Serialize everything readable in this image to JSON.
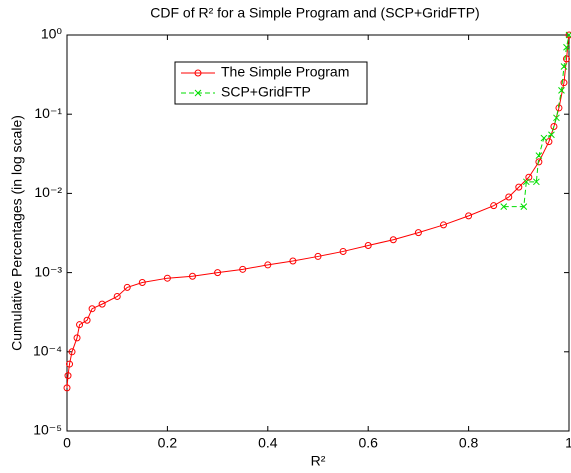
{
  "chart_data": {
    "type": "line",
    "title": "CDF of R² for a Simple Program and (SCP+GridFTP)",
    "x_label": "R²",
    "y_label": "Cumulative Percentages (in log scale)",
    "xlim": [
      0,
      1
    ],
    "xticks": [
      0,
      0.2,
      0.4,
      0.6,
      0.8,
      1
    ],
    "ylim": [
      1e-05,
      1
    ],
    "y_scale": "log",
    "yticks": [
      {
        "value": 1e-05,
        "label": "10⁻⁵"
      },
      {
        "value": 0.0001,
        "label": "10⁻⁴"
      },
      {
        "value": 0.001,
        "label": "10⁻³"
      },
      {
        "value": 0.01,
        "label": "10⁻²"
      },
      {
        "value": 0.1,
        "label": "10⁻¹"
      },
      {
        "value": 1,
        "label": "10⁰"
      }
    ],
    "grid": false,
    "legend": "upper center",
    "series": [
      {
        "name": "The Simple Program",
        "color": "#ff0000",
        "marker": "o",
        "linestyle": "solid",
        "x": [
          0,
          0.002,
          0.005,
          0.01,
          0.02,
          0.025,
          0.04,
          0.05,
          0.07,
          0.1,
          0.12,
          0.15,
          0.2,
          0.25,
          0.3,
          0.35,
          0.4,
          0.45,
          0.5,
          0.55,
          0.6,
          0.65,
          0.7,
          0.75,
          0.8,
          0.85,
          0.88,
          0.9,
          0.92,
          0.94,
          0.96,
          0.97,
          0.98,
          0.99,
          0.995,
          1
        ],
        "values": [
          3.5e-05,
          5e-05,
          7e-05,
          0.0001,
          0.00015,
          0.00022,
          0.00025,
          0.00035,
          0.0004,
          0.0005,
          0.00065,
          0.00075,
          0.00085,
          0.0009,
          0.001,
          0.0011,
          0.00125,
          0.0014,
          0.0016,
          0.00185,
          0.0022,
          0.0026,
          0.0032,
          0.004,
          0.0052,
          0.007,
          0.009,
          0.012,
          0.016,
          0.025,
          0.045,
          0.07,
          0.12,
          0.25,
          0.5,
          1
        ]
      },
      {
        "name": "SCP+GridFTP",
        "color": "#00dd00",
        "marker": "x",
        "linestyle": "dashed",
        "x": [
          0.87,
          0.91,
          0.915,
          0.935,
          0.94,
          0.95,
          0.965,
          0.975,
          0.985,
          0.99,
          0.995,
          1
        ],
        "values": [
          0.0068,
          0.0068,
          0.014,
          0.014,
          0.03,
          0.05,
          0.055,
          0.09,
          0.2,
          0.4,
          0.7,
          1
        ]
      }
    ]
  }
}
